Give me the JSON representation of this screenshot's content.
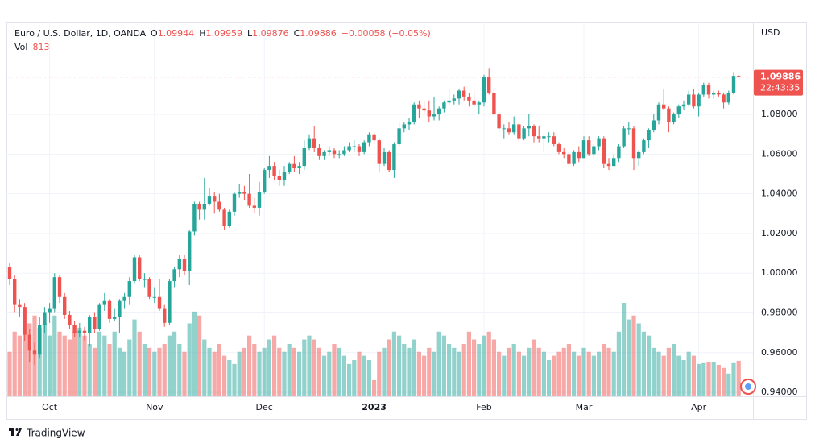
{
  "chart_data": {
    "type": "candlestick",
    "symbol": "Euro / U.S. Dollar, 1D, OANDA",
    "legend_labels": [
      "O",
      "H",
      "L",
      "C"
    ],
    "change_text": "−0.00058 (−0.05%)",
    "volume_label": "Vol",
    "currency": "USD",
    "countdown": "22:43:35",
    "brand": "TradingView",
    "up_color": "#26a69a",
    "down_color": "#ef5350",
    "grid": true,
    "ylim": [
      0.938,
      1.1267
    ],
    "yticks": [
      {
        "value": 0.94,
        "label": "0.94000"
      },
      {
        "value": 0.96,
        "label": "0.96000"
      },
      {
        "value": 0.98,
        "label": "0.98000"
      },
      {
        "value": 1.0,
        "label": "1.00000"
      },
      {
        "value": 1.02,
        "label": "1.02000"
      },
      {
        "value": 1.04,
        "label": "1.04000"
      },
      {
        "value": 1.06,
        "label": "1.06000"
      },
      {
        "value": 1.08,
        "label": "1.08000"
      }
    ],
    "categories": [
      null,
      null,
      null,
      null,
      null,
      null,
      null,
      null,
      "Oct",
      null,
      null,
      null,
      null,
      null,
      null,
      null,
      null,
      null,
      null,
      null,
      null,
      null,
      null,
      null,
      null,
      null,
      null,
      null,
      null,
      "Nov",
      null,
      null,
      null,
      null,
      null,
      null,
      null,
      null,
      null,
      null,
      null,
      null,
      null,
      null,
      null,
      null,
      null,
      null,
      null,
      null,
      null,
      "Dec",
      null,
      null,
      null,
      null,
      null,
      null,
      null,
      null,
      null,
      null,
      null,
      null,
      null,
      null,
      null,
      null,
      null,
      null,
      null,
      null,
      null,
      "2023",
      null,
      null,
      null,
      null,
      null,
      null,
      null,
      null,
      null,
      null,
      null,
      null,
      null,
      null,
      null,
      null,
      null,
      null,
      null,
      null,
      null,
      "Feb",
      null,
      null,
      null,
      null,
      null,
      null,
      null,
      null,
      null,
      null,
      null,
      null,
      null,
      null,
      null,
      null,
      null,
      null,
      null,
      "Mar",
      null,
      null,
      null,
      null,
      null,
      null,
      null,
      null,
      null,
      null,
      null,
      null,
      null,
      null,
      null,
      null,
      null,
      null,
      null,
      null,
      null,
      null,
      "Apr",
      null,
      null,
      null,
      null,
      null,
      null,
      null,
      null
    ],
    "open": [
      1.003,
      0.997,
      0.984,
      0.983,
      0.969,
      0.961,
      0.959,
      0.974,
      0.98,
      0.982,
      0.998,
      0.988,
      0.979,
      0.974,
      0.97,
      0.971,
      0.97,
      0.978,
      0.972,
      0.984,
      0.986,
      0.977,
      0.978,
      0.986,
      0.988,
      0.996,
      1.008,
      0.997,
      0.997,
      0.988,
      0.988,
      0.982,
      0.975,
      0.996,
      1.002,
      1.007,
      1.001,
      1.021,
      1.035,
      1.032,
      1.035,
      1.039,
      1.036,
      1.032,
      1.024,
      1.031,
      1.04,
      1.041,
      1.04,
      1.034,
      1.033,
      1.041,
      1.052,
      1.054,
      1.049,
      1.047,
      1.051,
      1.055,
      1.053,
      1.054,
      1.063,
      1.068,
      1.063,
      1.059,
      1.061,
      1.062,
      1.06,
      1.06,
      1.062,
      1.064,
      1.064,
      1.061,
      1.066,
      1.07,
      1.067,
      1.055,
      1.061,
      1.052,
      1.065,
      1.073,
      1.075,
      1.076,
      1.085,
      1.083,
      1.082,
      1.079,
      1.08,
      1.083,
      1.086,
      1.087,
      1.088,
      1.092,
      1.089,
      1.087,
      1.085,
      1.086,
      1.099,
      1.091,
      1.08,
      1.073,
      1.073,
      1.071,
      1.075,
      1.068,
      1.073,
      1.074,
      1.069,
      1.068,
      1.069,
      1.069,
      1.065,
      1.061,
      1.06,
      1.055,
      1.061,
      1.058,
      1.067,
      1.06,
      1.064,
      1.068,
      1.055,
      1.054,
      1.058,
      1.064,
      1.073,
      1.073,
      1.058,
      1.061,
      1.067,
      1.072,
      1.077,
      1.085,
      1.083,
      1.076,
      1.08,
      1.084,
      1.085,
      1.09,
      1.084,
      1.09,
      1.095,
      1.09,
      1.091,
      1.09,
      1.086,
      1.091,
      1.09944
    ],
    "high": [
      1.005,
      0.999,
      0.987,
      0.985,
      0.972,
      0.965,
      0.978,
      0.983,
      0.985,
      1.0,
      0.999,
      0.99,
      0.981,
      0.976,
      0.975,
      0.973,
      0.979,
      0.98,
      0.985,
      0.99,
      0.987,
      0.982,
      0.987,
      0.99,
      0.998,
      1.009,
      1.009,
      1.0,
      0.998,
      0.993,
      0.997,
      0.984,
      0.997,
      1.003,
      1.009,
      1.009,
      1.022,
      1.036,
      1.036,
      1.048,
      1.043,
      1.041,
      1.04,
      1.033,
      1.032,
      1.041,
      1.045,
      1.044,
      1.05,
      1.038,
      1.046,
      1.053,
      1.059,
      1.056,
      1.052,
      1.054,
      1.056,
      1.059,
      1.056,
      1.067,
      1.07,
      1.074,
      1.065,
      1.062,
      1.064,
      1.063,
      1.062,
      1.064,
      1.066,
      1.067,
      1.065,
      1.067,
      1.071,
      1.071,
      1.068,
      1.063,
      1.062,
      1.066,
      1.076,
      1.076,
      1.078,
      1.086,
      1.087,
      1.087,
      1.087,
      1.089,
      1.084,
      1.087,
      1.093,
      1.09,
      1.093,
      1.094,
      1.091,
      1.092,
      1.087,
      1.1,
      1.103,
      1.093,
      1.081,
      1.075,
      1.076,
      1.079,
      1.076,
      1.074,
      1.08,
      1.075,
      1.074,
      1.07,
      1.071,
      1.071,
      1.066,
      1.063,
      1.061,
      1.062,
      1.064,
      1.069,
      1.069,
      1.065,
      1.069,
      1.069,
      1.058,
      1.06,
      1.065,
      1.074,
      1.076,
      1.074,
      1.062,
      1.068,
      1.073,
      1.08,
      1.086,
      1.093,
      1.084,
      1.081,
      1.085,
      1.087,
      1.092,
      1.093,
      1.091,
      1.096,
      1.096,
      1.092,
      1.092,
      1.091,
      1.092,
      1.101,
      1.09959
    ],
    "low": [
      0.994,
      0.98,
      0.978,
      0.966,
      0.955,
      0.954,
      0.957,
      0.97,
      0.975,
      0.98,
      0.985,
      0.977,
      0.972,
      0.968,
      0.968,
      0.966,
      0.963,
      0.97,
      0.971,
      0.981,
      0.975,
      0.976,
      0.97,
      0.982,
      0.984,
      0.995,
      0.996,
      0.993,
      0.987,
      0.985,
      0.981,
      0.973,
      0.974,
      0.993,
      0.998,
      0.999,
      0.994,
      1.019,
      1.027,
      1.027,
      1.034,
      1.03,
      1.031,
      1.022,
      1.023,
      1.029,
      1.038,
      1.037,
      1.033,
      1.03,
      1.029,
      1.04,
      1.048,
      1.047,
      1.044,
      1.044,
      1.05,
      1.051,
      1.05,
      1.052,
      1.062,
      1.061,
      1.057,
      1.057,
      1.059,
      1.058,
      1.058,
      1.059,
      1.061,
      1.061,
      1.059,
      1.06,
      1.064,
      1.065,
      1.051,
      1.054,
      1.051,
      1.048,
      1.064,
      1.071,
      1.072,
      1.075,
      1.078,
      1.08,
      1.076,
      1.077,
      1.077,
      1.081,
      1.085,
      1.085,
      1.085,
      1.087,
      1.084,
      1.084,
      1.08,
      1.084,
      1.09,
      1.079,
      1.071,
      1.068,
      1.07,
      1.07,
      1.066,
      1.067,
      1.069,
      1.066,
      1.066,
      1.061,
      1.066,
      1.064,
      1.06,
      1.058,
      1.054,
      1.054,
      1.056,
      1.058,
      1.059,
      1.058,
      1.062,
      1.053,
      1.052,
      1.054,
      1.056,
      1.063,
      1.07,
      1.052,
      1.054,
      1.06,
      1.063,
      1.071,
      1.075,
      1.082,
      1.071,
      1.075,
      1.078,
      1.082,
      1.084,
      1.083,
      1.079,
      1.089,
      1.088,
      1.088,
      1.089,
      1.083,
      1.085,
      1.09,
      1.09876
    ],
    "close": [
      0.997,
      0.984,
      0.983,
      0.969,
      0.961,
      0.959,
      0.974,
      0.98,
      0.982,
      0.998,
      0.988,
      0.979,
      0.974,
      0.97,
      0.971,
      0.97,
      0.978,
      0.972,
      0.984,
      0.986,
      0.977,
      0.978,
      0.986,
      0.988,
      0.996,
      1.008,
      0.997,
      0.997,
      0.988,
      0.988,
      0.982,
      0.975,
      0.996,
      1.002,
      1.007,
      1.001,
      1.021,
      1.035,
      1.032,
      1.035,
      1.039,
      1.036,
      1.032,
      1.024,
      1.031,
      1.04,
      1.041,
      1.04,
      1.034,
      1.033,
      1.041,
      1.052,
      1.054,
      1.049,
      1.047,
      1.051,
      1.055,
      1.053,
      1.054,
      1.063,
      1.068,
      1.063,
      1.059,
      1.061,
      1.062,
      1.06,
      1.06,
      1.062,
      1.064,
      1.064,
      1.061,
      1.066,
      1.07,
      1.067,
      1.055,
      1.061,
      1.052,
      1.065,
      1.073,
      1.075,
      1.076,
      1.085,
      1.083,
      1.082,
      1.079,
      1.08,
      1.083,
      1.086,
      1.087,
      1.088,
      1.092,
      1.089,
      1.087,
      1.085,
      1.086,
      1.099,
      1.091,
      1.08,
      1.073,
      1.073,
      1.071,
      1.075,
      1.068,
      1.073,
      1.074,
      1.069,
      1.068,
      1.069,
      1.069,
      1.065,
      1.061,
      1.06,
      1.055,
      1.061,
      1.058,
      1.067,
      1.06,
      1.064,
      1.068,
      1.055,
      1.054,
      1.058,
      1.064,
      1.073,
      1.073,
      1.058,
      1.061,
      1.067,
      1.072,
      1.077,
      1.085,
      1.083,
      1.076,
      1.08,
      1.084,
      1.085,
      1.09,
      1.084,
      1.09,
      1.095,
      1.09,
      1.091,
      1.09,
      1.086,
      1.091,
      1.09944,
      1.09886
    ],
    "volume": [
      1020,
      1480,
      1390,
      2030,
      1670,
      1850,
      1570,
      1670,
      1390,
      1850,
      1480,
      1390,
      1300,
      1480,
      1570,
      1390,
      1200,
      1110,
      1480,
      1390,
      1200,
      1480,
      1110,
      1020,
      1300,
      1760,
      1480,
      1200,
      1110,
      1020,
      1110,
      1200,
      1390,
      1480,
      1200,
      1020,
      1670,
      1940,
      1850,
      1300,
      1110,
      1020,
      1200,
      930,
      830,
      740,
      1020,
      1110,
      1390,
      1200,
      1020,
      1110,
      1300,
      1390,
      1110,
      1020,
      1200,
      1110,
      1020,
      1300,
      1390,
      1300,
      1110,
      930,
      1020,
      1200,
      1110,
      930,
      740,
      830,
      1020,
      930,
      830,
      370,
      1020,
      1110,
      1300,
      1480,
      1390,
      1200,
      1110,
      1300,
      1020,
      930,
      1110,
      1020,
      1480,
      1390,
      1200,
      1110,
      1020,
      1200,
      1480,
      1300,
      1200,
      1390,
      1480,
      1300,
      1020,
      930,
      1110,
      1200,
      1020,
      930,
      1110,
      1300,
      1110,
      1020,
      830,
      930,
      1020,
      1110,
      1200,
      1020,
      930,
      1110,
      1020,
      930,
      1020,
      1200,
      1110,
      1020,
      1480,
      2140,
      1760,
      1850,
      1670,
      1480,
      1390,
      1110,
      1020,
      930,
      1110,
      1200,
      930,
      830,
      1020,
      930,
      740,
      760,
      780,
      780,
      720,
      650,
      520,
      760,
      813
    ]
  }
}
